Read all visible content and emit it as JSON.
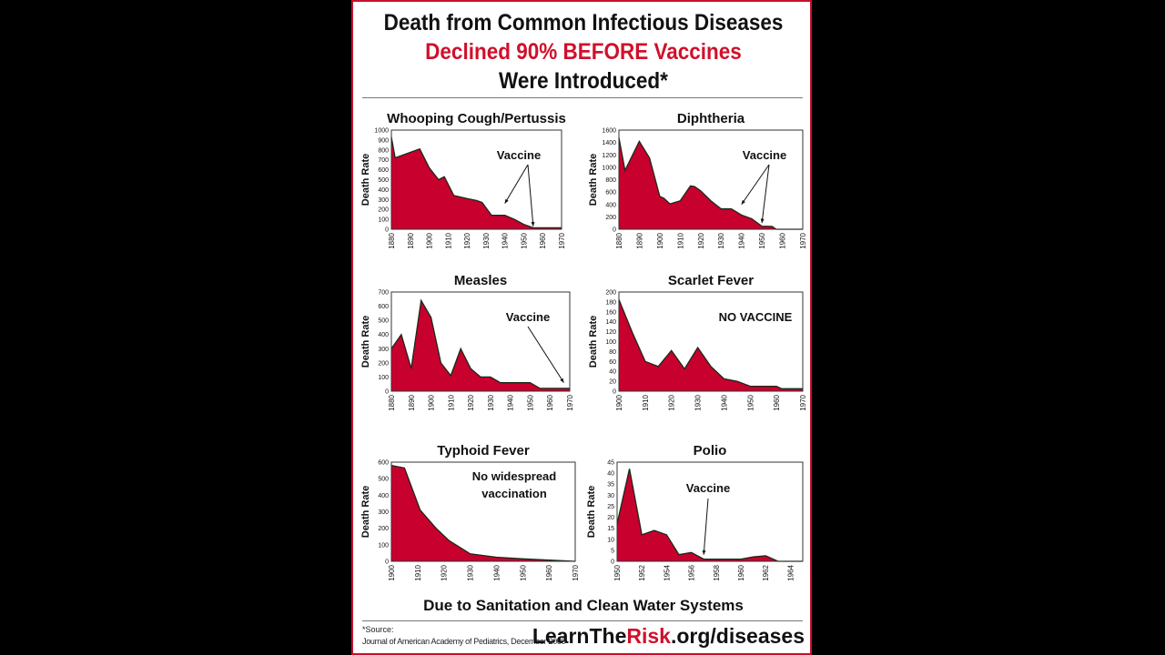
{
  "header": {
    "line1": "Death from Common Infectious Diseases",
    "line2": "Declined 90% BEFORE Vaccines",
    "line3": "Were Introduced*"
  },
  "footer": {
    "tagline": "Due to Sanitation and Clean Water Systems",
    "source_label": "*Source:",
    "source_text": "Journal of American Academy of Pediatrics, December 2000",
    "url_part1": "LearnThe",
    "url_part2": "Risk",
    "url_part3": ".org/diseases"
  },
  "colors": {
    "fill": "#c8002d",
    "outline": "#1a2a1a",
    "accent": "#d0102b",
    "border": "#c8102e"
  },
  "chart_data": [
    {
      "type": "area",
      "title": "Whooping Cough/Pertussis",
      "ylabel": "Death Rate",
      "xlabel": "",
      "xlim": [
        1880,
        1970
      ],
      "ylim": [
        0,
        1000
      ],
      "xticks": [
        1880,
        1890,
        1900,
        1910,
        1920,
        1930,
        1940,
        1950,
        1960,
        1970
      ],
      "yticks": [
        0,
        100,
        200,
        300,
        400,
        500,
        600,
        700,
        800,
        900,
        1000
      ],
      "x": [
        1880,
        1882,
        1895,
        1900,
        1905,
        1908,
        1913,
        1920,
        1925,
        1928,
        1933,
        1940,
        1945,
        1950,
        1955,
        1960,
        1970
      ],
      "y": [
        930,
        720,
        810,
        620,
        500,
        530,
        340,
        310,
        290,
        270,
        140,
        140,
        100,
        50,
        15,
        15,
        15
      ],
      "annotation": {
        "text": "Vaccine",
        "arrows_to": [
          [
            1940,
            260
          ],
          [
            1955,
            30
          ]
        ]
      }
    },
    {
      "type": "area",
      "title": "Diphtheria",
      "ylabel": "Death Rate",
      "xlabel": "",
      "xlim": [
        1880,
        1970
      ],
      "ylim": [
        0,
        1600
      ],
      "xticks": [
        1880,
        1890,
        1900,
        1910,
        1920,
        1930,
        1940,
        1950,
        1960,
        1970
      ],
      "yticks": [
        0,
        200,
        400,
        600,
        800,
        1000,
        1200,
        1400,
        1600
      ],
      "x": [
        1880,
        1883,
        1890,
        1895,
        1900,
        1902,
        1905,
        1910,
        1915,
        1917,
        1920,
        1925,
        1930,
        1935,
        1940,
        1945,
        1950,
        1955,
        1957,
        1970
      ],
      "y": [
        1480,
        950,
        1420,
        1150,
        530,
        500,
        410,
        460,
        700,
        690,
        620,
        460,
        330,
        330,
        230,
        170,
        50,
        45,
        0,
        0
      ],
      "annotation": {
        "text": "Vaccine",
        "arrows_to": [
          [
            1940,
            400
          ],
          [
            1950,
            100
          ]
        ]
      }
    },
    {
      "type": "area",
      "title": "Measles",
      "ylabel": "Death Rate",
      "xlabel": "",
      "xlim": [
        1880,
        1970
      ],
      "ylim": [
        0,
        700
      ],
      "xticks": [
        1880,
        1890,
        1900,
        1910,
        1920,
        1930,
        1940,
        1950,
        1960,
        1970
      ],
      "yticks": [
        0,
        100,
        200,
        300,
        400,
        500,
        600,
        700
      ],
      "x": [
        1880,
        1885,
        1890,
        1895,
        1900,
        1905,
        1910,
        1915,
        1920,
        1925,
        1930,
        1935,
        1940,
        1945,
        1950,
        1955,
        1960,
        1970
      ],
      "y": [
        300,
        400,
        160,
        640,
        520,
        200,
        110,
        300,
        160,
        100,
        100,
        60,
        60,
        60,
        60,
        20,
        20,
        20
      ],
      "annotation": {
        "text": "Vaccine",
        "arrows_to": [
          [
            1967,
            60
          ]
        ]
      }
    },
    {
      "type": "area",
      "title": "Scarlet Fever",
      "ylabel": "Death Rate",
      "xlabel": "",
      "xlim": [
        1900,
        1970
      ],
      "ylim": [
        0,
        200
      ],
      "xticks": [
        1900,
        1910,
        1920,
        1930,
        1940,
        1950,
        1960,
        1970
      ],
      "yticks": [
        0,
        20,
        40,
        60,
        80,
        100,
        120,
        140,
        160,
        180,
        200
      ],
      "x": [
        1900,
        1905,
        1910,
        1915,
        1920,
        1925,
        1930,
        1935,
        1937,
        1940,
        1945,
        1950,
        1955,
        1960,
        1962,
        1970
      ],
      "y": [
        185,
        120,
        60,
        50,
        82,
        45,
        88,
        50,
        40,
        25,
        20,
        10,
        10,
        10,
        5,
        5
      ],
      "annotation": {
        "text": "NO VACCINE",
        "arrows_to": []
      }
    },
    {
      "type": "area",
      "title": "Typhoid Fever",
      "ylabel": "Death Rate",
      "xlabel": "",
      "xlim": [
        1900,
        1970
      ],
      "ylim": [
        0,
        600
      ],
      "xticks": [
        1900,
        1910,
        1920,
        1930,
        1940,
        1950,
        1960,
        1970
      ],
      "yticks": [
        0,
        100,
        200,
        300,
        400,
        500,
        600
      ],
      "x": [
        1900,
        1905,
        1911,
        1917,
        1922,
        1930,
        1940,
        1950,
        1960,
        1970
      ],
      "y": [
        580,
        565,
        310,
        200,
        125,
        45,
        25,
        15,
        7,
        0
      ],
      "annotation": {
        "text": "No widespread vaccination",
        "lines": [
          "No widespread",
          "vaccination"
        ],
        "arrows_to": []
      }
    },
    {
      "type": "area",
      "title": "Polio",
      "ylabel": "Death Rate",
      "xlabel": "",
      "xlim": [
        1950,
        1965
      ],
      "ylim": [
        0,
        45
      ],
      "xticks": [
        1950,
        1952,
        1954,
        1956,
        1958,
        1960,
        1962,
        1964
      ],
      "yticks": [
        0,
        5,
        10,
        15,
        20,
        25,
        30,
        35,
        40,
        45
      ],
      "x": [
        1950,
        1951,
        1952,
        1953,
        1954,
        1955,
        1956,
        1957,
        1958,
        1959,
        1960,
        1961,
        1962,
        1963,
        1965
      ],
      "y": [
        17,
        42,
        12,
        14,
        12,
        3,
        4,
        1,
        1,
        1,
        1,
        2,
        2.5,
        0,
        0
      ],
      "annotation": {
        "text": "Vaccine",
        "arrows_to": [
          [
            1957,
            3
          ]
        ]
      }
    }
  ]
}
